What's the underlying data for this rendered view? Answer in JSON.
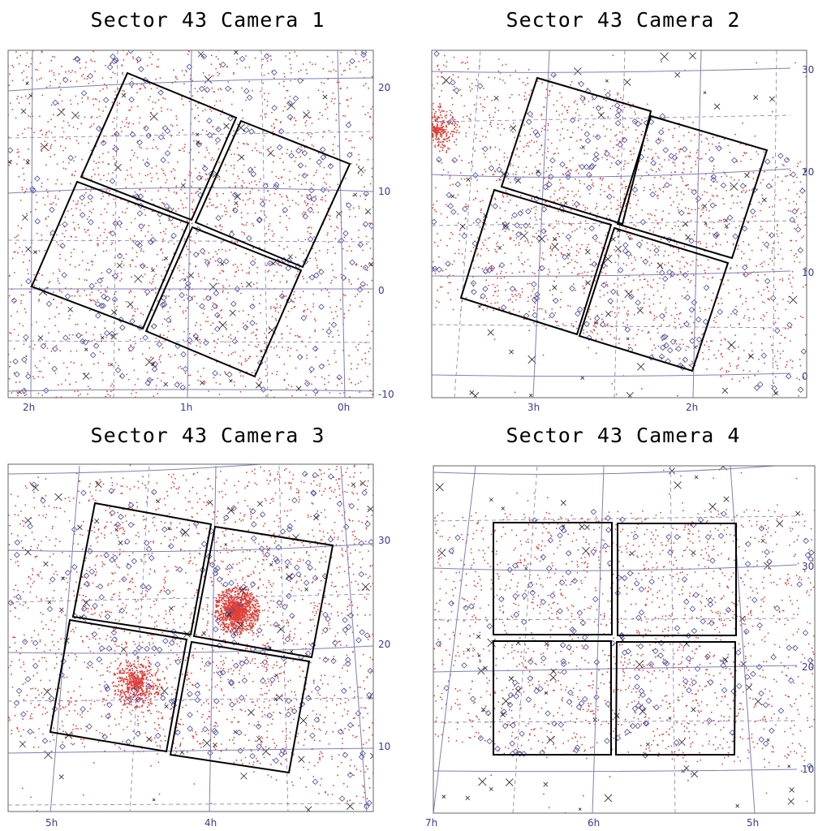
{
  "colors": {
    "frame": "#666666",
    "ra_line": "#7f7fb8",
    "dec_line": "#7f7fb8",
    "ccd": "#000000",
    "star": "#e0413a",
    "diamond": "#4a4aa0",
    "cross": "#222222",
    "tick_text": "#3a3a8c"
  },
  "chart_data": [
    {
      "type": "scatter",
      "title": "Sector 43 Camera 1",
      "ra_ticks": [
        "2h",
        "1h",
        "0h"
      ],
      "dec_ticks": [
        "20",
        "10",
        "0",
        "-10"
      ],
      "ccds": 4,
      "clusters": []
    },
    {
      "type": "scatter",
      "title": "Sector 43 Camera 2",
      "ra_ticks": [
        "3h",
        "2h"
      ],
      "dec_ticks": [
        "30",
        "20",
        "10",
        "0"
      ],
      "ccds": 4,
      "clusters": [
        "Pleiades-like dense field at left edge"
      ]
    },
    {
      "type": "scatter",
      "title": "Sector 43 Camera 3",
      "ra_ticks": [
        "5h",
        "4h"
      ],
      "dec_ticks": [
        "30",
        "20",
        "10"
      ],
      "ccds": 4,
      "clusters": [
        "dense cluster upper right",
        "loose cluster lower left"
      ]
    },
    {
      "type": "scatter",
      "title": "Sector 43 Camera 4",
      "ra_ticks": [
        "7h",
        "6h",
        "5h"
      ],
      "dec_ticks": [
        "30",
        "20",
        "10"
      ],
      "ccds": 4,
      "clusters": []
    }
  ]
}
